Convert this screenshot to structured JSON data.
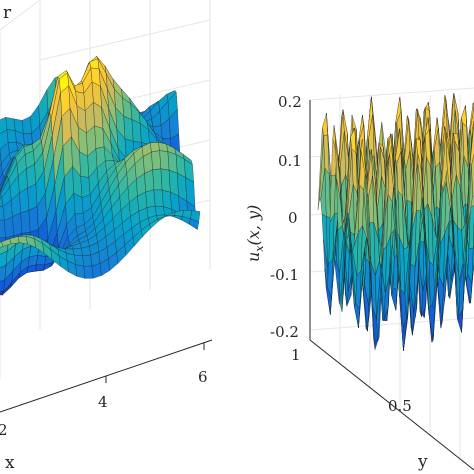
{
  "chart_data": [
    {
      "type": "surface",
      "title": "",
      "zlabel": "r",
      "xlabel": "x",
      "ylabel": "",
      "x_ticks": [
        "2",
        "4",
        "6"
      ],
      "z_ticks": [],
      "grid": true,
      "colormap": "parula",
      "description_values": {
        "x_range": [
          2,
          6
        ]
      }
    },
    {
      "type": "surface",
      "title": "",
      "zlabel": "u_x(x,y)",
      "zlabel_parts": {
        "main": "u",
        "sub": "x",
        "args": "(x, y)"
      },
      "xlabel": "",
      "ylabel": "y",
      "z_ticks": [
        "0.2",
        "0.1",
        "0",
        "-0.1",
        "-0.2"
      ],
      "zlim": [
        -0.2,
        0.2
      ],
      "y_ticks": [
        "1",
        "0.5"
      ],
      "ylim": [
        0,
        1
      ],
      "grid": true,
      "colormap": "parula"
    }
  ],
  "colors": {
    "parula": [
      "#352a87",
      "#0f5cdd",
      "#1481d6",
      "#06a4ca",
      "#2eb7a4",
      "#87bf77",
      "#d1bb59",
      "#fec832",
      "#f9fb0e"
    ]
  }
}
